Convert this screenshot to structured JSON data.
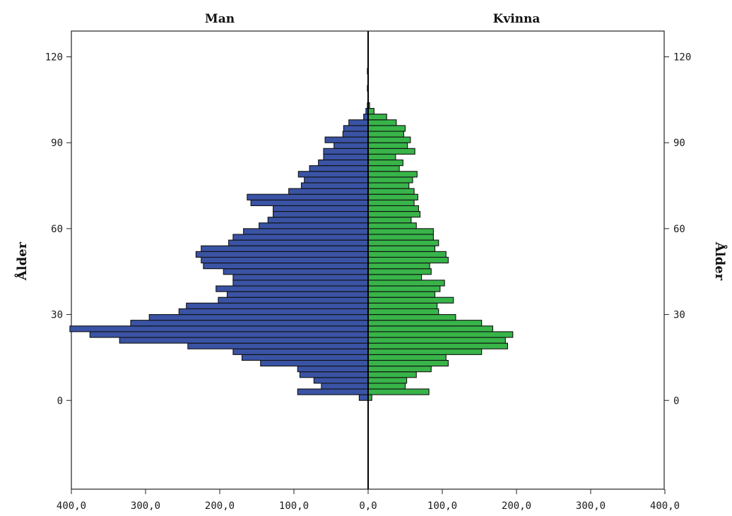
{
  "chart_data": {
    "type": "bar",
    "orientation": "horizontal",
    "subtype": "population-pyramid",
    "panels": [
      "Man",
      "Kvinna"
    ],
    "ylabel": "Ålder",
    "y_ticks": [
      0,
      30,
      60,
      90,
      120
    ],
    "y_tick_labels": [
      "0",
      "30",
      "60",
      "90",
      "120"
    ],
    "ylim": [
      -31,
      129
    ],
    "x_ticks": [
      400,
      300,
      200,
      100,
      0,
      100,
      200,
      300,
      400
    ],
    "x_tick_labels": [
      "400,0",
      "300,0",
      "200,0",
      "100,0",
      "0,0",
      "100,0",
      "200,0",
      "300,0",
      "400,0"
    ],
    "xlim": [
      0,
      400
    ],
    "bin_width": 2,
    "grid": false,
    "colors": {
      "Man": "#3a53a4",
      "Kvinna": "#38b449",
      "edge": "#111111"
    },
    "series": [
      {
        "name": "Man",
        "bins": [
          {
            "age": 0,
            "value": 12
          },
          {
            "age": 2,
            "value": 95
          },
          {
            "age": 4,
            "value": 63
          },
          {
            "age": 6,
            "value": 73
          },
          {
            "age": 8,
            "value": 92
          },
          {
            "age": 10,
            "value": 95
          },
          {
            "age": 12,
            "value": 145
          },
          {
            "age": 14,
            "value": 170
          },
          {
            "age": 16,
            "value": 182
          },
          {
            "age": 18,
            "value": 243
          },
          {
            "age": 20,
            "value": 335
          },
          {
            "age": 22,
            "value": 375
          },
          {
            "age": 24,
            "value": 402
          },
          {
            "age": 26,
            "value": 320
          },
          {
            "age": 28,
            "value": 295
          },
          {
            "age": 30,
            "value": 255
          },
          {
            "age": 32,
            "value": 245
          },
          {
            "age": 34,
            "value": 202
          },
          {
            "age": 36,
            "value": 190
          },
          {
            "age": 38,
            "value": 205
          },
          {
            "age": 40,
            "value": 182
          },
          {
            "age": 42,
            "value": 182
          },
          {
            "age": 44,
            "value": 195
          },
          {
            "age": 46,
            "value": 222
          },
          {
            "age": 48,
            "value": 225
          },
          {
            "age": 50,
            "value": 232
          },
          {
            "age": 52,
            "value": 225
          },
          {
            "age": 54,
            "value": 188
          },
          {
            "age": 56,
            "value": 182
          },
          {
            "age": 58,
            "value": 168
          },
          {
            "age": 60,
            "value": 147
          },
          {
            "age": 62,
            "value": 135
          },
          {
            "age": 64,
            "value": 128
          },
          {
            "age": 66,
            "value": 128
          },
          {
            "age": 68,
            "value": 158
          },
          {
            "age": 70,
            "value": 163
          },
          {
            "age": 72,
            "value": 107
          },
          {
            "age": 74,
            "value": 90
          },
          {
            "age": 76,
            "value": 86
          },
          {
            "age": 78,
            "value": 94
          },
          {
            "age": 80,
            "value": 79
          },
          {
            "age": 82,
            "value": 67
          },
          {
            "age": 84,
            "value": 60
          },
          {
            "age": 86,
            "value": 60
          },
          {
            "age": 88,
            "value": 46
          },
          {
            "age": 90,
            "value": 58
          },
          {
            "age": 92,
            "value": 34
          },
          {
            "age": 94,
            "value": 33
          },
          {
            "age": 96,
            "value": 26
          },
          {
            "age": 98,
            "value": 6
          },
          {
            "age": 100,
            "value": 3
          },
          {
            "age": 102,
            "value": 1
          },
          {
            "age": 108,
            "value": 1
          },
          {
            "age": 114,
            "value": 1
          }
        ]
      },
      {
        "name": "Kvinna",
        "bins": [
          {
            "age": 0,
            "value": 5
          },
          {
            "age": 2,
            "value": 82
          },
          {
            "age": 4,
            "value": 50
          },
          {
            "age": 6,
            "value": 52
          },
          {
            "age": 8,
            "value": 65
          },
          {
            "age": 10,
            "value": 85
          },
          {
            "age": 12,
            "value": 108
          },
          {
            "age": 14,
            "value": 105
          },
          {
            "age": 16,
            "value": 153
          },
          {
            "age": 18,
            "value": 188
          },
          {
            "age": 20,
            "value": 185
          },
          {
            "age": 22,
            "value": 195
          },
          {
            "age": 24,
            "value": 168
          },
          {
            "age": 26,
            "value": 153
          },
          {
            "age": 28,
            "value": 118
          },
          {
            "age": 30,
            "value": 95
          },
          {
            "age": 32,
            "value": 93
          },
          {
            "age": 34,
            "value": 115
          },
          {
            "age": 36,
            "value": 90
          },
          {
            "age": 38,
            "value": 97
          },
          {
            "age": 40,
            "value": 103
          },
          {
            "age": 42,
            "value": 72
          },
          {
            "age": 44,
            "value": 85
          },
          {
            "age": 46,
            "value": 83
          },
          {
            "age": 48,
            "value": 108
          },
          {
            "age": 50,
            "value": 105
          },
          {
            "age": 52,
            "value": 90
          },
          {
            "age": 54,
            "value": 95
          },
          {
            "age": 56,
            "value": 88
          },
          {
            "age": 58,
            "value": 88
          },
          {
            "age": 60,
            "value": 65
          },
          {
            "age": 62,
            "value": 58
          },
          {
            "age": 64,
            "value": 70
          },
          {
            "age": 66,
            "value": 68
          },
          {
            "age": 68,
            "value": 62
          },
          {
            "age": 70,
            "value": 67
          },
          {
            "age": 72,
            "value": 62
          },
          {
            "age": 74,
            "value": 55
          },
          {
            "age": 76,
            "value": 60
          },
          {
            "age": 78,
            "value": 66
          },
          {
            "age": 80,
            "value": 42
          },
          {
            "age": 82,
            "value": 47
          },
          {
            "age": 84,
            "value": 37
          },
          {
            "age": 86,
            "value": 63
          },
          {
            "age": 88,
            "value": 53
          },
          {
            "age": 90,
            "value": 57
          },
          {
            "age": 92,
            "value": 48
          },
          {
            "age": 94,
            "value": 50
          },
          {
            "age": 96,
            "value": 38
          },
          {
            "age": 98,
            "value": 25
          },
          {
            "age": 100,
            "value": 8
          },
          {
            "age": 102,
            "value": 2
          }
        ]
      }
    ]
  }
}
